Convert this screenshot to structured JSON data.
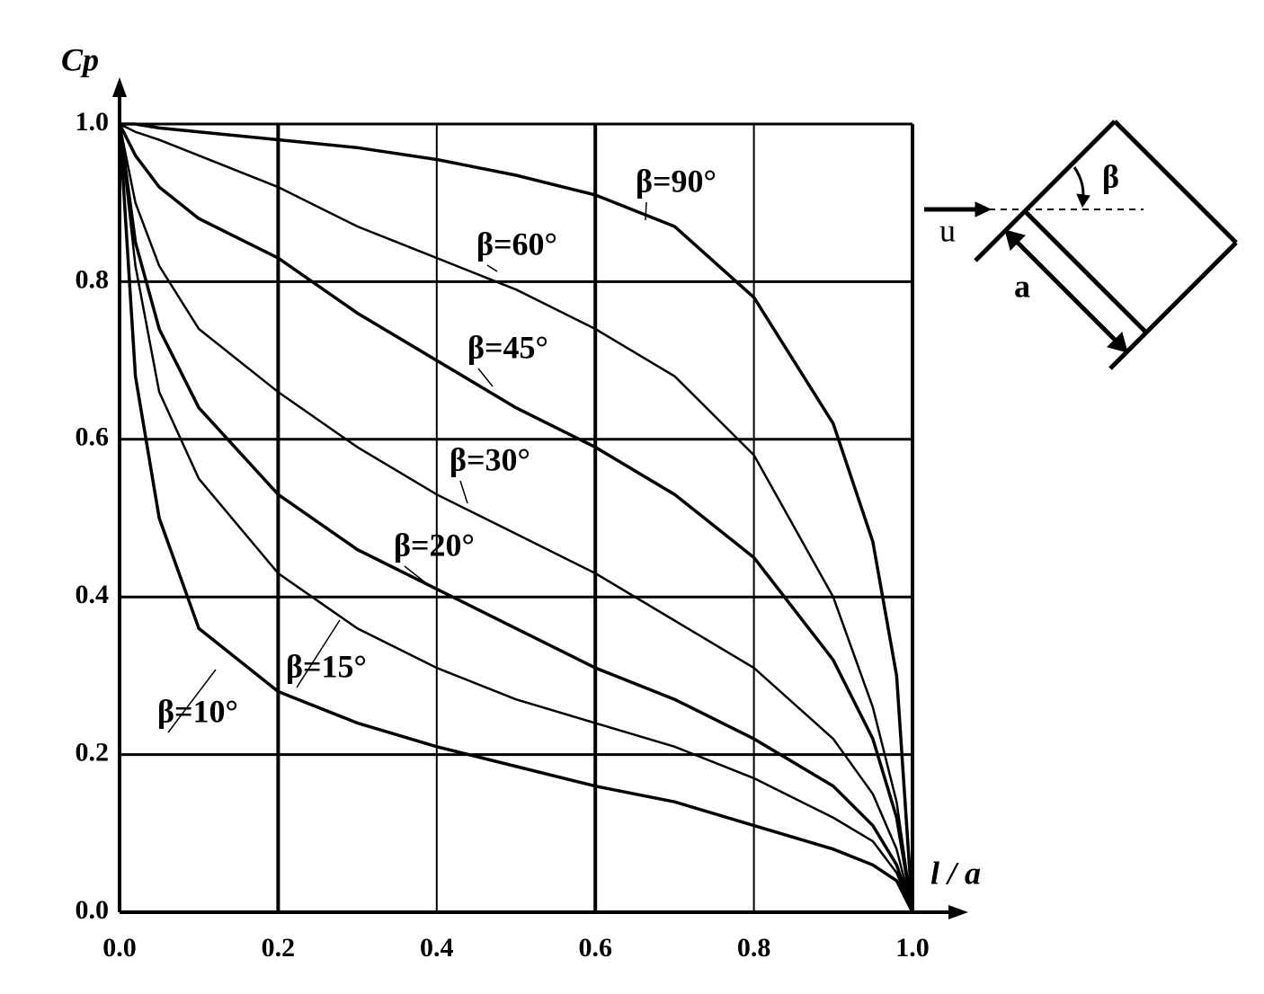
{
  "chart_data": {
    "type": "line",
    "x_label": "l / a",
    "y_label": "Cp",
    "x": [
      0,
      0.02,
      0.05,
      0.1,
      0.2,
      0.3,
      0.4,
      0.5,
      0.6,
      0.7,
      0.8,
      0.9,
      0.95,
      0.98,
      1
    ],
    "series": [
      {
        "name": "β=90°",
        "color": "#000000",
        "values": [
          1,
          1,
          0.995,
          0.99,
          0.98,
          0.97,
          0.955,
          0.935,
          0.91,
          0.87,
          0.78,
          0.62,
          0.47,
          0.3,
          0
        ]
      },
      {
        "name": "β=60°",
        "color": "#000000",
        "values": [
          1,
          0.99,
          0.98,
          0.96,
          0.92,
          0.87,
          0.83,
          0.79,
          0.74,
          0.68,
          0.58,
          0.4,
          0.26,
          0.14,
          0
        ]
      },
      {
        "name": "β=45°",
        "color": "#000000",
        "values": [
          1,
          0.96,
          0.92,
          0.88,
          0.83,
          0.76,
          0.7,
          0.64,
          0.59,
          0.53,
          0.45,
          0.32,
          0.22,
          0.12,
          0
        ]
      },
      {
        "name": "β=30°",
        "color": "#000000",
        "values": [
          1,
          0.9,
          0.82,
          0.74,
          0.66,
          0.59,
          0.53,
          0.48,
          0.43,
          0.37,
          0.31,
          0.22,
          0.15,
          0.08,
          0
        ]
      },
      {
        "name": "β=20°",
        "color": "#000000",
        "values": [
          1,
          0.85,
          0.74,
          0.64,
          0.53,
          0.46,
          0.41,
          0.36,
          0.31,
          0.27,
          0.22,
          0.16,
          0.11,
          0.06,
          0
        ]
      },
      {
        "name": "β=15°",
        "color": "#000000",
        "values": [
          1,
          0.82,
          0.66,
          0.55,
          0.43,
          0.36,
          0.31,
          0.27,
          0.24,
          0.21,
          0.17,
          0.12,
          0.09,
          0.05,
          0
        ]
      },
      {
        "name": "β=10°",
        "color": "#000000",
        "values": [
          1,
          0.68,
          0.5,
          0.36,
          0.28,
          0.24,
          0.21,
          0.185,
          0.16,
          0.14,
          0.11,
          0.08,
          0.06,
          0.04,
          0
        ]
      }
    ],
    "xlim": [
      0,
      1
    ],
    "ylim": [
      0,
      1
    ],
    "xticks": [
      {
        "value": 0,
        "label": "0.0"
      },
      0.2,
      0.4,
      0.6,
      0.8,
      {
        "value": 1,
        "label": "1.0"
      }
    ],
    "yticks": [
      {
        "value": 0,
        "label": "0.0"
      },
      0.2,
      0.4,
      0.6,
      0.8,
      {
        "value": 1,
        "label": "1.0"
      }
    ],
    "grid": true,
    "diagram": {
      "labels": [
        "β",
        "u",
        "a"
      ]
    }
  }
}
